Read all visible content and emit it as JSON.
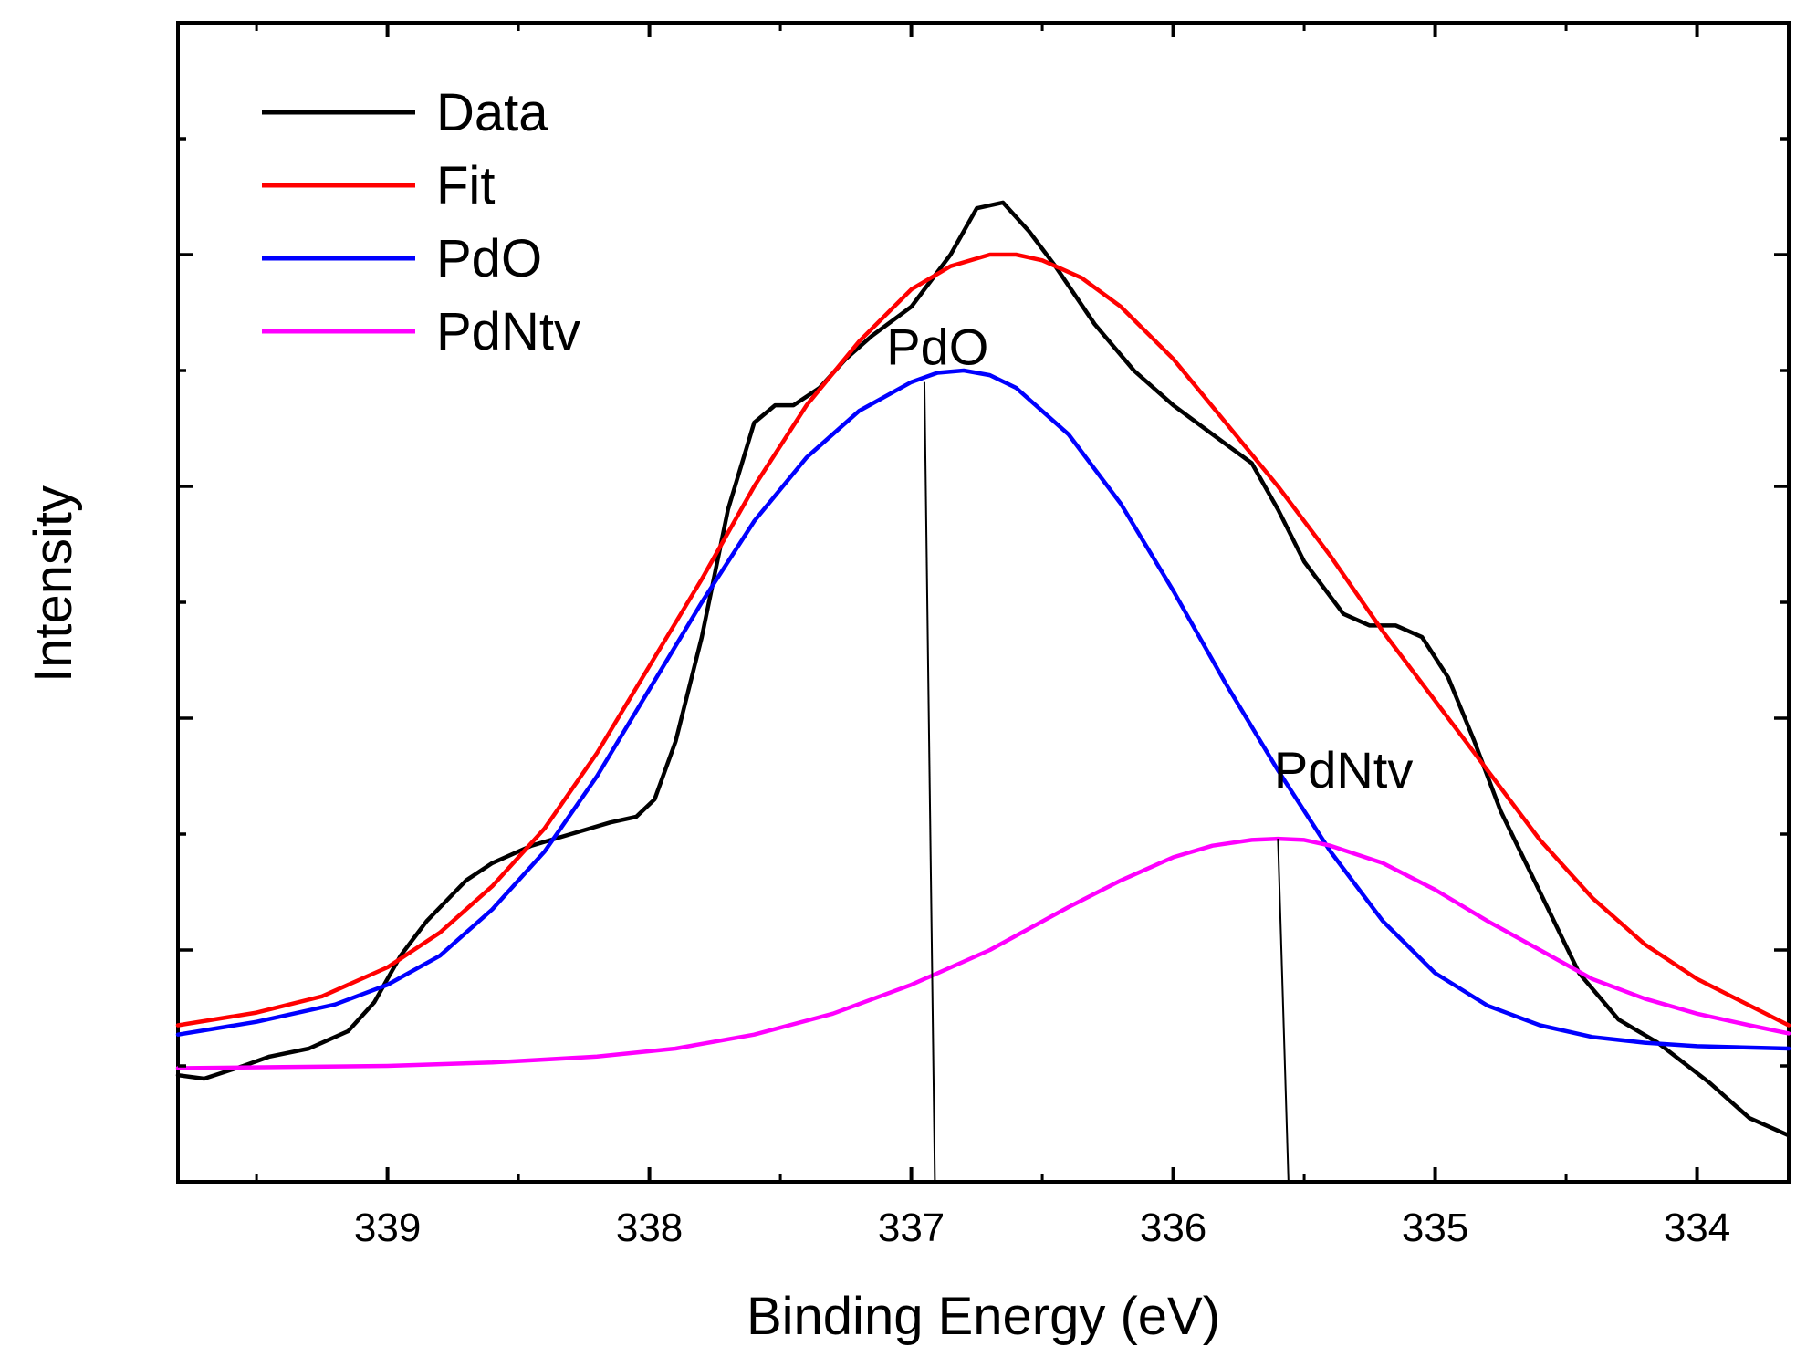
{
  "chart_data": {
    "type": "line",
    "title": "",
    "xlabel": "Binding Energy (eV)",
    "ylabel": "Intensity",
    "xlim": [
      339.8,
      333.65
    ],
    "ylim": [
      0,
      1
    ],
    "x_ticks": [
      339,
      338,
      337,
      336,
      335,
      334
    ],
    "x_tick_labels": [
      "339",
      "338",
      "337",
      "336",
      "335",
      "334"
    ],
    "y_ticks": [
      0.1,
      0.2,
      0.3,
      0.4,
      0.5,
      0.6,
      0.7,
      0.8,
      0.9,
      1.0
    ],
    "y_tick_labels_visible": false,
    "legend": {
      "position": "top-left",
      "entries": [
        "Data",
        "Fit",
        "PdO",
        "PdNtv"
      ]
    },
    "series": [
      {
        "name": "Data",
        "color": "#000000",
        "x": [
          339.8,
          339.7,
          339.55,
          339.45,
          339.3,
          339.15,
          339.05,
          338.95,
          338.85,
          338.7,
          338.6,
          338.45,
          338.3,
          338.15,
          338.05,
          337.98,
          337.9,
          337.8,
          337.7,
          337.6,
          337.52,
          337.45,
          337.35,
          337.25,
          337.15,
          337.0,
          336.85,
          336.75,
          336.65,
          336.55,
          336.45,
          336.3,
          336.15,
          336.0,
          335.85,
          335.7,
          335.6,
          335.5,
          335.35,
          335.25,
          335.15,
          335.05,
          334.95,
          334.85,
          334.75,
          334.6,
          334.45,
          334.3,
          334.15,
          333.95,
          333.8,
          333.65
        ],
        "y": [
          0.092,
          0.089,
          0.1,
          0.108,
          0.115,
          0.13,
          0.155,
          0.195,
          0.225,
          0.26,
          0.275,
          0.29,
          0.3,
          0.31,
          0.315,
          0.33,
          0.38,
          0.47,
          0.58,
          0.655,
          0.67,
          0.67,
          0.685,
          0.71,
          0.73,
          0.755,
          0.8,
          0.84,
          0.845,
          0.82,
          0.79,
          0.74,
          0.7,
          0.67,
          0.645,
          0.62,
          0.58,
          0.535,
          0.49,
          0.48,
          0.48,
          0.47,
          0.435,
          0.38,
          0.32,
          0.25,
          0.18,
          0.14,
          0.12,
          0.085,
          0.055,
          0.04
        ],
        "peak_label": ""
      },
      {
        "name": "Fit",
        "color": "#ff0000",
        "x": [
          339.8,
          339.5,
          339.25,
          339.0,
          338.8,
          338.6,
          338.4,
          338.2,
          338.0,
          337.8,
          337.6,
          337.4,
          337.2,
          337.0,
          336.85,
          336.7,
          336.6,
          336.5,
          336.35,
          336.2,
          336.0,
          335.8,
          335.6,
          335.4,
          335.2,
          335.0,
          334.8,
          334.6,
          334.4,
          334.2,
          334.0,
          333.65
        ],
        "y": [
          0.135,
          0.146,
          0.16,
          0.185,
          0.215,
          0.255,
          0.305,
          0.37,
          0.445,
          0.52,
          0.6,
          0.67,
          0.725,
          0.77,
          0.79,
          0.8,
          0.8,
          0.795,
          0.78,
          0.755,
          0.71,
          0.655,
          0.6,
          0.54,
          0.475,
          0.415,
          0.355,
          0.295,
          0.245,
          0.205,
          0.175,
          0.135
        ],
        "peak_label": ""
      },
      {
        "name": "PdO",
        "color": "#0000ff",
        "x": [
          339.8,
          339.5,
          339.2,
          339.0,
          338.8,
          338.6,
          338.4,
          338.2,
          338.0,
          337.8,
          337.6,
          337.4,
          337.2,
          337.0,
          336.9,
          336.8,
          336.7,
          336.6,
          336.4,
          336.2,
          336.0,
          335.8,
          335.6,
          335.4,
          335.2,
          335.0,
          334.8,
          334.6,
          334.4,
          334.2,
          334.0,
          333.65
        ],
        "y": [
          0.127,
          0.138,
          0.153,
          0.17,
          0.195,
          0.235,
          0.285,
          0.35,
          0.425,
          0.5,
          0.57,
          0.625,
          0.665,
          0.69,
          0.698,
          0.7,
          0.696,
          0.685,
          0.645,
          0.585,
          0.51,
          0.43,
          0.355,
          0.285,
          0.225,
          0.18,
          0.152,
          0.135,
          0.125,
          0.12,
          0.117,
          0.115
        ],
        "peak_label": "PdO",
        "peak_x": 336.95,
        "peak_label_y": 0.7
      },
      {
        "name": "PdNtv",
        "color": "#ff00ff",
        "x": [
          339.8,
          339.4,
          339.0,
          338.6,
          338.2,
          337.9,
          337.6,
          337.3,
          337.0,
          336.7,
          336.4,
          336.2,
          336.0,
          335.85,
          335.7,
          335.6,
          335.5,
          335.4,
          335.2,
          335.0,
          334.8,
          334.6,
          334.4,
          334.2,
          334.0,
          333.8,
          333.65
        ],
        "y": [
          0.098,
          0.099,
          0.1,
          0.103,
          0.108,
          0.115,
          0.127,
          0.145,
          0.17,
          0.2,
          0.237,
          0.26,
          0.28,
          0.29,
          0.295,
          0.296,
          0.295,
          0.29,
          0.275,
          0.252,
          0.225,
          0.2,
          0.175,
          0.158,
          0.145,
          0.135,
          0.128
        ],
        "peak_label": "PdNtv",
        "peak_x": 335.6,
        "peak_label_y": 0.33
      }
    ],
    "annotations": [
      {
        "text": "PdO",
        "x": 336.9,
        "y": 0.705
      },
      {
        "text": "PdNtv",
        "x": 335.35,
        "y": 0.34
      }
    ]
  }
}
